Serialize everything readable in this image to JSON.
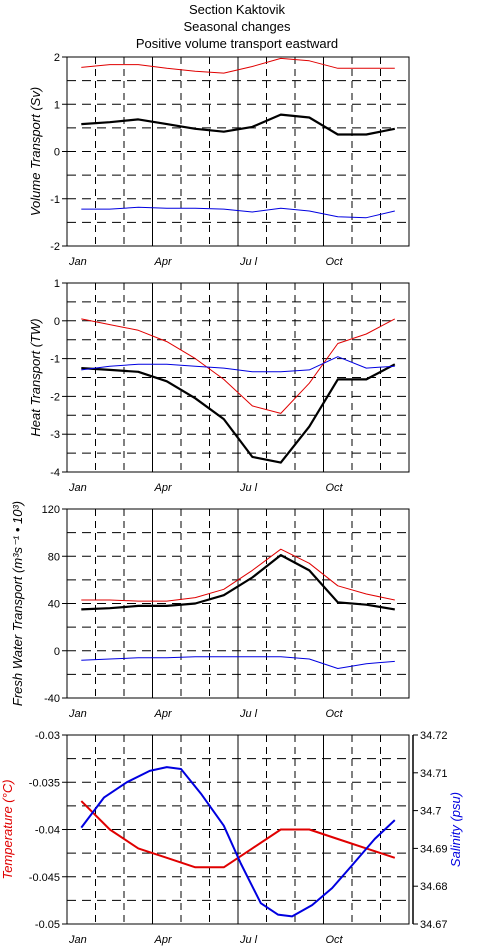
{
  "header": {
    "line1": "Section Kaktovik",
    "line2": "Seasonal changes",
    "line3": "Positive volume transport eastward"
  },
  "chart_data": [
    {
      "type": "line",
      "ylabel": "Volume Transport (Sv)",
      "ylim": [
        -2,
        2
      ],
      "yticks": [
        -2,
        -1,
        0,
        1,
        2
      ],
      "xlim": [
        0.5,
        12.5
      ],
      "month_labels": [
        {
          "m": 1,
          "label": "Jan"
        },
        {
          "m": 4,
          "label": "Apr"
        },
        {
          "m": 7,
          "label": "Ju l"
        },
        {
          "m": 10,
          "label": "Oct"
        }
      ],
      "grid": true,
      "series": [
        {
          "color": "#e00000",
          "width": 1,
          "x": [
            1,
            2,
            3,
            4,
            5,
            6,
            7,
            8,
            9,
            10,
            11,
            12
          ],
          "values": [
            1.78,
            1.84,
            1.84,
            1.76,
            1.7,
            1.66,
            1.8,
            1.97,
            1.92,
            1.76,
            1.76,
            1.76
          ]
        },
        {
          "color": "#000000",
          "width": 2.2,
          "x": [
            1,
            2,
            3,
            4,
            5,
            6,
            7,
            8,
            9,
            10,
            11,
            12
          ],
          "values": [
            0.58,
            0.62,
            0.68,
            0.58,
            0.48,
            0.42,
            0.52,
            0.78,
            0.72,
            0.36,
            0.36,
            0.48
          ]
        },
        {
          "color": "#0000e0",
          "width": 1,
          "x": [
            1,
            2,
            3,
            4,
            5,
            6,
            7,
            8,
            9,
            10,
            11,
            12
          ],
          "values": [
            -1.22,
            -1.22,
            -1.18,
            -1.2,
            -1.2,
            -1.22,
            -1.28,
            -1.2,
            -1.26,
            -1.38,
            -1.4,
            -1.26
          ]
        }
      ]
    },
    {
      "type": "line",
      "ylabel": "Heat Transport (TW)",
      "ylim": [
        -4,
        1
      ],
      "yticks": [
        -4,
        -3,
        -2,
        -1,
        0,
        1
      ],
      "xlim": [
        0.5,
        12.5
      ],
      "month_labels": [
        {
          "m": 1,
          "label": "Jan"
        },
        {
          "m": 4,
          "label": "Apr"
        },
        {
          "m": 7,
          "label": "Ju l"
        },
        {
          "m": 10,
          "label": "Oct"
        }
      ],
      "grid": true,
      "series": [
        {
          "color": "#e00000",
          "width": 1,
          "x": [
            1,
            2,
            3,
            4,
            5,
            6,
            7,
            8,
            9,
            10,
            11,
            12
          ],
          "values": [
            0.05,
            -0.1,
            -0.25,
            -0.55,
            -1.0,
            -1.55,
            -2.25,
            -2.45,
            -1.65,
            -0.6,
            -0.35,
            0.05
          ]
        },
        {
          "color": "#000000",
          "width": 2.2,
          "x": [
            1,
            2,
            3,
            4,
            5,
            6,
            7,
            8,
            9,
            10,
            11,
            12
          ],
          "values": [
            -1.25,
            -1.3,
            -1.35,
            -1.6,
            -2.05,
            -2.6,
            -3.6,
            -3.75,
            -2.8,
            -1.55,
            -1.55,
            -1.15
          ]
        },
        {
          "color": "#0000e0",
          "width": 1,
          "x": [
            1,
            2,
            3,
            4,
            5,
            6,
            7,
            8,
            9,
            10,
            11,
            12
          ],
          "values": [
            -1.3,
            -1.2,
            -1.15,
            -1.15,
            -1.2,
            -1.25,
            -1.35,
            -1.35,
            -1.3,
            -0.95,
            -1.25,
            -1.2
          ]
        }
      ]
    },
    {
      "type": "line",
      "ylabel": "Fresh Water Transport (m³s⁻¹ • 10³)",
      "ylim": [
        -40,
        120
      ],
      "yticks": [
        -40,
        0,
        40,
        80,
        120
      ],
      "xlim": [
        0.5,
        12.5
      ],
      "month_labels": [
        {
          "m": 1,
          "label": "Jan"
        },
        {
          "m": 4,
          "label": "Apr"
        },
        {
          "m": 7,
          "label": "Ju l"
        },
        {
          "m": 10,
          "label": "Oct"
        }
      ],
      "grid": true,
      "series": [
        {
          "color": "#e00000",
          "width": 1,
          "x": [
            1,
            2,
            3,
            4,
            5,
            6,
            7,
            8,
            9,
            10,
            11,
            12
          ],
          "values": [
            43,
            43,
            42,
            42,
            45,
            52,
            68,
            86,
            74,
            55,
            48,
            43
          ]
        },
        {
          "color": "#000000",
          "width": 2.2,
          "x": [
            1,
            2,
            3,
            4,
            5,
            6,
            7,
            8,
            9,
            10,
            11,
            12
          ],
          "values": [
            35,
            36,
            38,
            38,
            40,
            47,
            62,
            81,
            68,
            41,
            39,
            35
          ]
        },
        {
          "color": "#0000e0",
          "width": 1,
          "x": [
            1,
            2,
            3,
            4,
            5,
            6,
            7,
            8,
            9,
            10,
            11,
            12
          ],
          "values": [
            -8,
            -7,
            -6,
            -6,
            -5,
            -5,
            -5,
            -5,
            -7,
            -15,
            -11,
            -9
          ]
        }
      ]
    },
    {
      "type": "line",
      "ylabel": "Temperature (°C)",
      "ylabel_color": "#e00000",
      "ylim": [
        -0.05,
        -0.03
      ],
      "yticks": [
        -0.05,
        -0.045,
        -0.04,
        -0.035,
        -0.03
      ],
      "ytick_labels": [
        "-0.05",
        "-0.045",
        "-0.04",
        "-0.035",
        "-0.03"
      ],
      "y2label": "Salinity (psu)",
      "y2label_color": "#0000e0",
      "y2lim": [
        34.67,
        34.72
      ],
      "y2ticks": [
        34.67,
        34.68,
        34.69,
        34.7,
        34.71,
        34.72
      ],
      "y2tick_labels": [
        "34.67",
        "34.68",
        "34.69",
        "34.7",
        "34.71",
        "34.72"
      ],
      "xlim": [
        0.5,
        12.5
      ],
      "month_labels": [
        {
          "m": 1,
          "label": "Jan"
        },
        {
          "m": 4,
          "label": "Apr"
        },
        {
          "m": 7,
          "label": "Ju l"
        },
        {
          "m": 10,
          "label": "Oct"
        }
      ],
      "grid": true,
      "series": [
        {
          "color": "#e00000",
          "width": 2,
          "axis": "left",
          "x": [
            1,
            2,
            3,
            4,
            5,
            6,
            7,
            8,
            9,
            10,
            11,
            12
          ],
          "values": [
            -0.037,
            -0.04,
            -0.042,
            -0.043,
            -0.044,
            -0.044,
            -0.042,
            -0.04,
            -0.04,
            -0.041,
            -0.042,
            -0.043
          ]
        },
        {
          "color": "#0000e0",
          "width": 2,
          "axis": "right",
          "x": [
            1,
            1.8,
            2.6,
            3.4,
            4,
            4.5,
            5.2,
            6,
            6.6,
            7.3,
            7.9,
            8.4,
            9.1,
            9.8,
            10.5,
            11.3,
            12
          ],
          "values": [
            34.6955,
            34.7035,
            34.7075,
            34.7105,
            34.7115,
            34.711,
            34.7045,
            34.696,
            34.686,
            34.6755,
            34.6725,
            34.672,
            34.675,
            34.6795,
            34.6855,
            34.6925,
            34.6975
          ]
        }
      ]
    }
  ]
}
